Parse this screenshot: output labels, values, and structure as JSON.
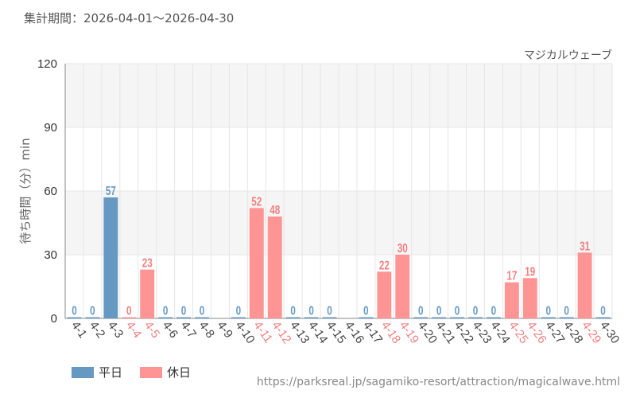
{
  "header": {
    "period_label": "集計期間：2026-04-01～2026-04-30"
  },
  "footer": {
    "url": "https://parksreal.jp/sagamiko-resort/attraction/magicalwave.html"
  },
  "colors": {
    "weekday": "#6699c2",
    "holiday": "#ff9494",
    "holiday_text": "#f08080",
    "band": "#f5f5f5",
    "grid": "#e6e6e6",
    "axis": "#888888"
  },
  "chart_data": {
    "type": "bar",
    "title": "マジカルウェーブ",
    "ylabel": "待ち時間（分）min",
    "xlabel": "",
    "ylim": [
      0,
      120
    ],
    "yticks": [
      0,
      30,
      60,
      90,
      120
    ],
    "legend": [
      {
        "name": "平日",
        "kind": "weekday"
      },
      {
        "name": "休日",
        "kind": "holiday"
      }
    ],
    "grid": true,
    "legend_position": "bottom-left",
    "categories": [
      "4-1",
      "4-2",
      "4-3",
      "4-4",
      "4-5",
      "4-6",
      "4-7",
      "4-8",
      "4-9",
      "4-10",
      "4-11",
      "4-12",
      "4-13",
      "4-14",
      "4-15",
      "4-16",
      "4-17",
      "4-18",
      "4-19",
      "4-20",
      "4-21",
      "4-22",
      "4-23",
      "4-24",
      "4-25",
      "4-26",
      "4-27",
      "4-28",
      "4-29",
      "4-30"
    ],
    "values": [
      0,
      0,
      57,
      0,
      23,
      0,
      0,
      0,
      null,
      0,
      52,
      48,
      0,
      0,
      0,
      null,
      0,
      22,
      30,
      0,
      0,
      0,
      0,
      0,
      17,
      19,
      0,
      0,
      31,
      0
    ],
    "day_type": [
      "weekday",
      "weekday",
      "weekday",
      "holiday",
      "holiday",
      "weekday",
      "weekday",
      "weekday",
      "weekday",
      "weekday",
      "holiday",
      "holiday",
      "weekday",
      "weekday",
      "weekday",
      "weekday",
      "weekday",
      "holiday",
      "holiday",
      "weekday",
      "weekday",
      "weekday",
      "weekday",
      "weekday",
      "holiday",
      "holiday",
      "weekday",
      "weekday",
      "holiday",
      "weekday"
    ]
  }
}
